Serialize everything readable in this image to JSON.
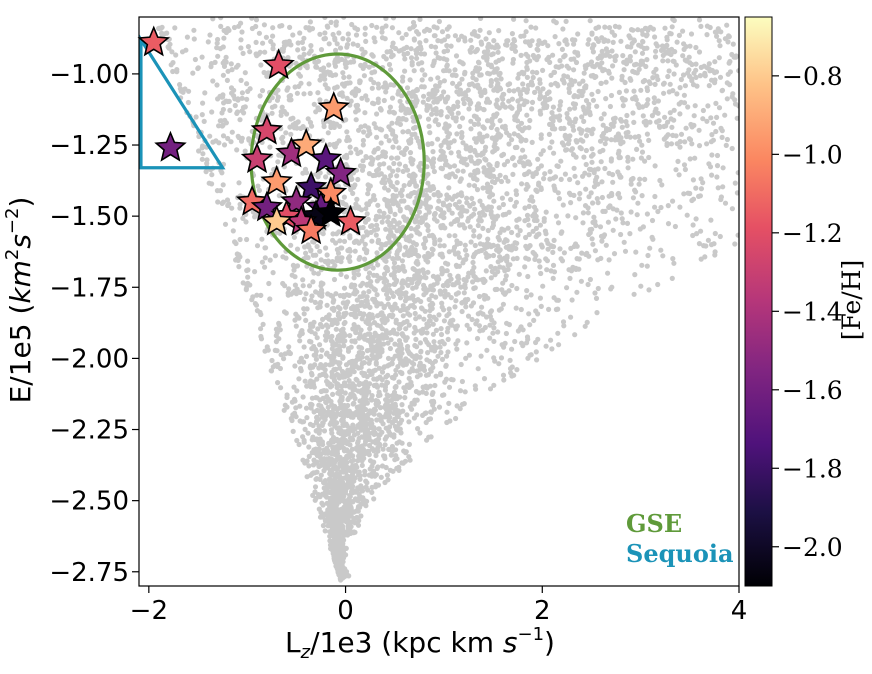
{
  "chart_data": {
    "type": "scatter",
    "xlabel": "L_z/1e3 (kpc km s^-1)",
    "xlabel_parts": {
      "main": "L",
      "sub": "z",
      "rest": "/1e3 (kpc km ",
      "italic": "s",
      "sup": "−1",
      "close": ")"
    },
    "ylabel_parts": {
      "main": "E/1e5 (",
      "italic": "km",
      "sup1": "2",
      "italic2": "s",
      "sup2": "−2",
      "close": ")"
    },
    "xlim": [
      -2.1,
      4.0
    ],
    "ylim": [
      -2.8,
      -0.8
    ],
    "x_ticks": [
      -2,
      0,
      2,
      4
    ],
    "x_tick_labels": [
      "−2",
      "0",
      "2",
      "4"
    ],
    "y_ticks": [
      -1.0,
      -1.25,
      -1.5,
      -1.75,
      -2.0,
      -2.25,
      -2.5,
      -2.75
    ],
    "y_tick_labels": [
      "−1.00",
      "−1.25",
      "−1.50",
      "−1.75",
      "−2.00",
      "−2.25",
      "−2.50",
      "−2.75"
    ],
    "background": {
      "name": "field stars",
      "color": "#c0c0c0",
      "description_shape": "V-shaped envelope, apex near (-0.05,-2.78)"
    },
    "colorbar": {
      "label": "[Fe/H]",
      "vmin": -2.1,
      "vmax": -0.65,
      "ticks": [
        -0.8,
        -1.0,
        -1.2,
        -1.4,
        -1.6,
        -1.8,
        -2.0
      ],
      "tick_labels": [
        "−0.8",
        "−1.0",
        "−1.2",
        "−1.4",
        "−1.6",
        "−1.8",
        "−2.0"
      ],
      "colormap": "magma"
    },
    "stars": [
      {
        "x": -1.95,
        "y": -0.89,
        "feh": -1.15
      },
      {
        "x": -1.78,
        "y": -1.26,
        "feh": -1.6
      },
      {
        "x": -0.68,
        "y": -0.97,
        "feh": -1.2
      },
      {
        "x": -0.12,
        "y": -1.12,
        "feh": -0.95
      },
      {
        "x": -0.8,
        "y": -1.2,
        "feh": -1.25
      },
      {
        "x": -0.9,
        "y": -1.3,
        "feh": -1.3
      },
      {
        "x": -0.55,
        "y": -1.28,
        "feh": -1.45
      },
      {
        "x": -0.4,
        "y": -1.25,
        "feh": -0.9
      },
      {
        "x": -0.2,
        "y": -1.3,
        "feh": -1.7
      },
      {
        "x": -0.05,
        "y": -1.35,
        "feh": -1.55
      },
      {
        "x": -0.7,
        "y": -1.38,
        "feh": -0.95
      },
      {
        "x": -0.35,
        "y": -1.4,
        "feh": -1.8
      },
      {
        "x": -0.5,
        "y": -1.45,
        "feh": -1.5
      },
      {
        "x": -0.15,
        "y": -1.42,
        "feh": -1.0
      },
      {
        "x": -0.95,
        "y": -1.45,
        "feh": -1.1
      },
      {
        "x": -0.25,
        "y": -1.47,
        "feh": -1.65
      },
      {
        "x": -0.8,
        "y": -1.47,
        "feh": -1.6
      },
      {
        "x": -0.6,
        "y": -1.5,
        "feh": -1.2
      },
      {
        "x": -0.3,
        "y": -1.5,
        "feh": -2.05
      },
      {
        "x": -0.15,
        "y": -1.49,
        "feh": -2.1
      },
      {
        "x": -0.45,
        "y": -1.52,
        "feh": -1.35
      },
      {
        "x": -0.7,
        "y": -1.52,
        "feh": -0.8
      },
      {
        "x": -0.35,
        "y": -1.55,
        "feh": -1.05
      },
      {
        "x": 0.05,
        "y": -1.52,
        "feh": -1.15
      }
    ],
    "regions": [
      {
        "name": "GSE",
        "shape": "ellipse",
        "center": [
          -0.08,
          -1.31
        ],
        "radius_x": 0.88,
        "radius_y": 0.38,
        "color": "#5f9a3a"
      },
      {
        "name": "Sequoia",
        "shape": "triangle",
        "vertices": [
          [
            -2.08,
            -0.88
          ],
          [
            -2.08,
            -1.33
          ],
          [
            -1.25,
            -1.33
          ]
        ],
        "color": "#1b93b8"
      }
    ],
    "legend": [
      {
        "label": "GSE",
        "color": "#5f9a3a"
      },
      {
        "label": "Sequoia",
        "color": "#1b93b8"
      }
    ]
  }
}
